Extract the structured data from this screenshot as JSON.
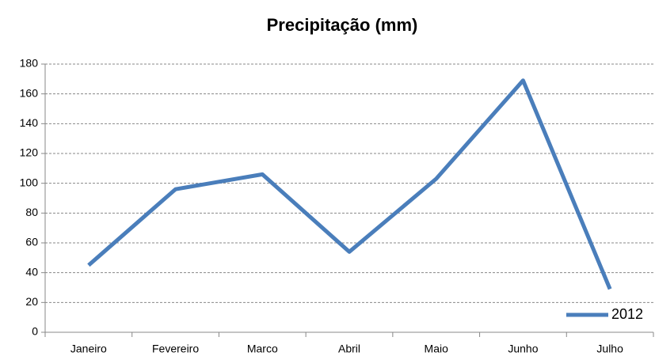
{
  "chart_data": {
    "type": "line",
    "title": "Precipitação (mm)",
    "categories": [
      "Janeiro",
      "Fevereiro",
      "Marco",
      "Abril",
      "Maio",
      "Junho",
      "Julho"
    ],
    "series": [
      {
        "name": "2012",
        "color": "#4a7ebb",
        "values": [
          45,
          96,
          106,
          54,
          103,
          169,
          29
        ]
      }
    ],
    "ylim": [
      0,
      180
    ],
    "yticks": [
      0,
      20,
      40,
      60,
      80,
      100,
      120,
      140,
      160,
      180
    ],
    "grid": true,
    "legend": "lower right"
  }
}
